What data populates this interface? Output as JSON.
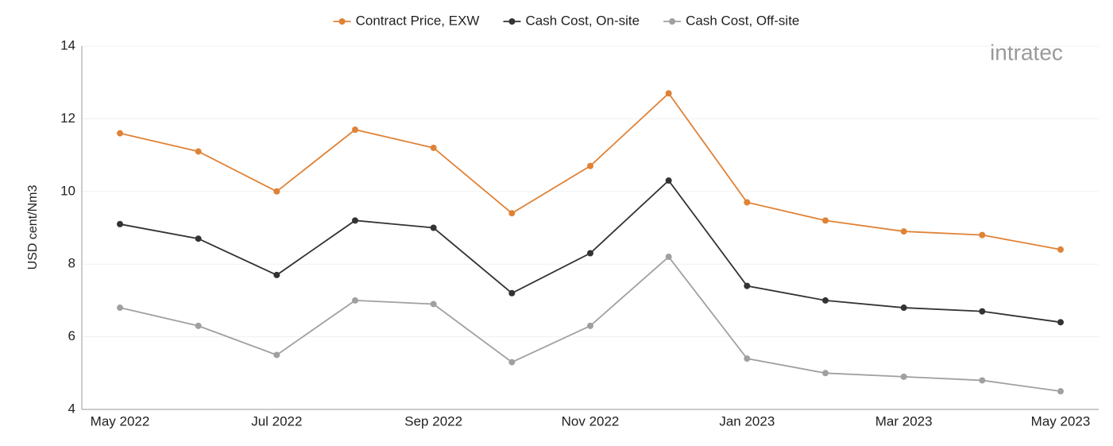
{
  "chart_data": {
    "type": "line",
    "y_label": "USD cent/Nm3",
    "watermark": "intratec",
    "categories": [
      "May 2022",
      null,
      "Jul 2022",
      null,
      "Sep 2022",
      null,
      "Nov 2022",
      null,
      "Jan 2023",
      null,
      "Mar 2023",
      null,
      "May 2023"
    ],
    "series": [
      {
        "name": "Contract Price, EXW",
        "color": "#e08236",
        "values": [
          11.6,
          11.1,
          10.0,
          11.7,
          11.2,
          9.4,
          10.7,
          12.7,
          9.7,
          9.2,
          8.9,
          8.8,
          8.4
        ]
      },
      {
        "name": "Cash Cost, On-site",
        "color": "#333333",
        "values": [
          9.1,
          8.7,
          7.7,
          9.2,
          9.0,
          7.2,
          8.3,
          10.3,
          7.4,
          7.0,
          6.8,
          6.7,
          6.4
        ]
      },
      {
        "name": "Cash Cost, Off-site",
        "color": "#a0a0a0",
        "values": [
          6.8,
          6.3,
          5.5,
          7.0,
          6.9,
          5.3,
          6.3,
          8.2,
          5.4,
          5.0,
          4.9,
          4.8,
          4.5
        ]
      }
    ],
    "ylim": [
      4,
      14
    ],
    "yticks": [
      4,
      6,
      8,
      10,
      12,
      14
    ],
    "grid": true,
    "legend": "top"
  }
}
